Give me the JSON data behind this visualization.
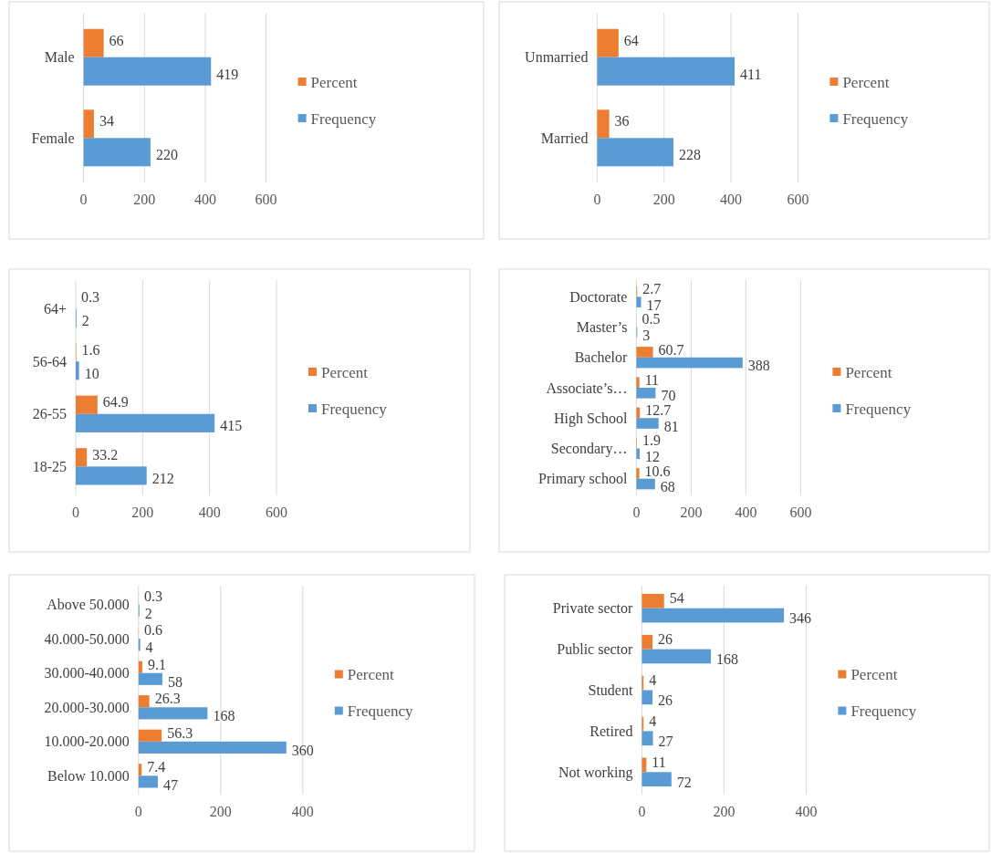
{
  "chart_data": [
    {
      "type": "bar",
      "orientation": "horizontal",
      "categories": [
        "Male",
        "Female"
      ],
      "series": [
        {
          "name": "Percent",
          "color": "#ed7d31",
          "values": [
            66,
            34
          ]
        },
        {
          "name": "Frequency",
          "color": "#5b9bd5",
          "values": [
            419,
            220
          ]
        }
      ],
      "xlim": [
        0,
        600
      ],
      "xticks": [
        0,
        200,
        400,
        600
      ],
      "grid": "x",
      "legend": "right",
      "data_labels": true
    },
    {
      "type": "bar",
      "orientation": "horizontal",
      "categories": [
        "Unmarried",
        "Married"
      ],
      "series": [
        {
          "name": "Percent",
          "color": "#ed7d31",
          "values": [
            64,
            36
          ]
        },
        {
          "name": "Frequency",
          "color": "#5b9bd5",
          "values": [
            411,
            228
          ]
        }
      ],
      "xlim": [
        0,
        600
      ],
      "xticks": [
        0,
        200,
        400,
        600
      ],
      "grid": "x",
      "legend": "right",
      "data_labels": true
    },
    {
      "type": "bar",
      "orientation": "horizontal",
      "categories": [
        "64+",
        "56-64",
        "26-55",
        "18-25"
      ],
      "series": [
        {
          "name": "Percent",
          "color": "#ed7d31",
          "values": [
            0.3,
            1.6,
            64.9,
            33.2
          ]
        },
        {
          "name": "Frequency",
          "color": "#5b9bd5",
          "values": [
            2,
            10,
            415,
            212
          ]
        }
      ],
      "xlim": [
        0,
        600
      ],
      "xticks": [
        0,
        200,
        400,
        600
      ],
      "grid": "x",
      "legend": "right",
      "data_labels": true
    },
    {
      "type": "bar",
      "orientation": "horizontal",
      "categories": [
        "Doctorate",
        "Master’s",
        "Bachelor",
        "Associate’s…",
        "High School",
        "Secondary…",
        "Primary school"
      ],
      "series": [
        {
          "name": "Percent",
          "color": "#ed7d31",
          "values": [
            2.7,
            0.5,
            60.7,
            11,
            12.7,
            1.9,
            10.6
          ]
        },
        {
          "name": "Frequency",
          "color": "#5b9bd5",
          "values": [
            17,
            3,
            388,
            70,
            81,
            12,
            68
          ]
        }
      ],
      "xlim": [
        0,
        600
      ],
      "xticks": [
        0,
        200,
        400,
        600
      ],
      "grid": "x",
      "legend": "right",
      "data_labels": true
    },
    {
      "type": "bar",
      "orientation": "horizontal",
      "categories": [
        "Above 50.000",
        "40.000-50.000",
        "30.000-40.000",
        "20.000-30.000",
        "10.000-20.000",
        "Below 10.000"
      ],
      "series": [
        {
          "name": "Percent",
          "color": "#ed7d31",
          "values": [
            0.3,
            0.6,
            9.1,
            26.3,
            56.3,
            7.4
          ]
        },
        {
          "name": "Frequency",
          "color": "#5b9bd5",
          "values": [
            2,
            4,
            58,
            168,
            360,
            47
          ]
        }
      ],
      "xlim": [
        0,
        400
      ],
      "xticks": [
        0,
        200,
        400
      ],
      "grid": "x",
      "legend": "right",
      "data_labels": true
    },
    {
      "type": "bar",
      "orientation": "horizontal",
      "categories": [
        "Private sector",
        "Public sector",
        "Student",
        "Retired",
        "Not working"
      ],
      "series": [
        {
          "name": "Percent",
          "color": "#ed7d31",
          "values": [
            54,
            26,
            4,
            4,
            11
          ]
        },
        {
          "name": "Frequency",
          "color": "#5b9bd5",
          "values": [
            346,
            168,
            26,
            27,
            72
          ]
        }
      ],
      "xlim": [
        0,
        400
      ],
      "xticks": [
        0,
        200,
        400
      ],
      "grid": "x",
      "legend": "right",
      "data_labels": true
    }
  ]
}
